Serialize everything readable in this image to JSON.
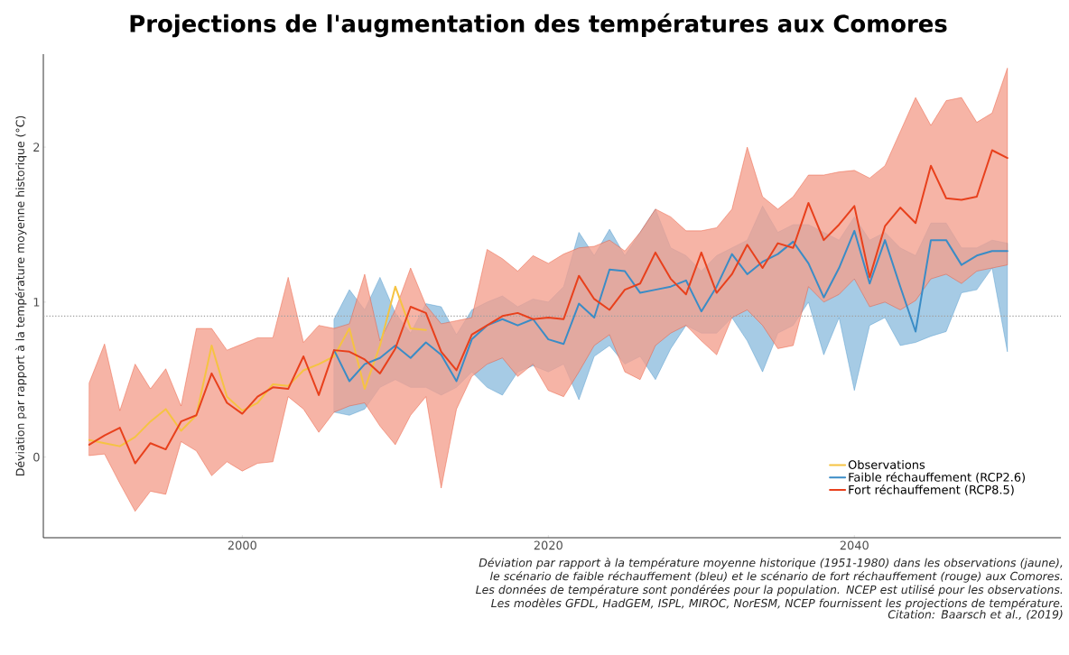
{
  "chart_data": {
    "type": "line",
    "title": "Projections de l'augmentation des températures aux Comores",
    "ylabel": "Déviation par rapport à la température moyenne historique (°C)",
    "x": [
      1990,
      1991,
      1992,
      1993,
      1994,
      1995,
      1996,
      1997,
      1998,
      1999,
      2000,
      2001,
      2002,
      2003,
      2004,
      2005,
      2006,
      2007,
      2008,
      2009,
      2010,
      2011,
      2012,
      2013,
      2014,
      2015,
      2016,
      2017,
      2018,
      2019,
      2020,
      2021,
      2022,
      2023,
      2024,
      2025,
      2026,
      2027,
      2028,
      2029,
      2030,
      2031,
      2032,
      2033,
      2034,
      2035,
      2036,
      2037,
      2038,
      2039,
      2040,
      2041,
      2042,
      2043,
      2044,
      2045,
      2046,
      2047,
      2048,
      2049,
      2050
    ],
    "series": [
      {
        "name": "Observations",
        "color": "#f5c342",
        "values": [
          0.11,
          0.09,
          0.07,
          0.13,
          0.23,
          0.31,
          0.17,
          0.27,
          0.72,
          0.39,
          0.3,
          0.35,
          0.47,
          0.46,
          0.56,
          0.6,
          0.65,
          0.83,
          0.44,
          0.72,
          1.1,
          0.83,
          0.82,
          null,
          null,
          null,
          null,
          null,
          null,
          null,
          null,
          null,
          null,
          null,
          null,
          null,
          null,
          null,
          null,
          null,
          null,
          null,
          null,
          null,
          null,
          null,
          null,
          null,
          null,
          null,
          null,
          null,
          null,
          null,
          null,
          null,
          null,
          null,
          null,
          null,
          null
        ]
      },
      {
        "name": "Faible réchauffement (RCP2.6)",
        "color": "#3a8cc6",
        "values": [
          null,
          null,
          null,
          null,
          null,
          null,
          null,
          null,
          null,
          null,
          null,
          null,
          null,
          null,
          null,
          null,
          0.69,
          0.49,
          0.6,
          0.64,
          0.72,
          0.64,
          0.74,
          0.66,
          0.49,
          0.76,
          0.85,
          0.89,
          0.85,
          0.89,
          0.76,
          0.73,
          0.99,
          0.9,
          1.21,
          1.2,
          1.06,
          1.08,
          1.1,
          1.14,
          0.94,
          1.1,
          1.31,
          1.18,
          1.26,
          1.31,
          1.39,
          1.25,
          1.03,
          1.22,
          1.46,
          1.12,
          1.4,
          1.1,
          0.81,
          1.4,
          1.4,
          1.24,
          1.3,
          1.33,
          1.33
        ],
        "lower": [
          null,
          null,
          null,
          null,
          null,
          null,
          null,
          null,
          null,
          null,
          null,
          null,
          null,
          null,
          null,
          null,
          0.29,
          0.27,
          0.31,
          0.45,
          0.5,
          0.45,
          0.45,
          0.4,
          0.45,
          0.55,
          0.45,
          0.4,
          0.55,
          0.59,
          0.55,
          0.6,
          0.37,
          0.65,
          0.72,
          0.6,
          0.65,
          0.5,
          0.7,
          0.85,
          0.8,
          0.8,
          0.9,
          0.75,
          0.55,
          0.8,
          0.85,
          1.0,
          0.66,
          0.9,
          0.43,
          0.85,
          0.9,
          0.72,
          0.74,
          0.78,
          0.81,
          1.06,
          1.08,
          1.22,
          0.68
        ],
        "upper": [
          null,
          null,
          null,
          null,
          null,
          null,
          null,
          null,
          null,
          null,
          null,
          null,
          null,
          null,
          null,
          null,
          0.89,
          1.08,
          0.95,
          1.16,
          0.93,
          0.8,
          0.99,
          0.97,
          0.79,
          0.95,
          1.0,
          1.04,
          0.97,
          1.02,
          1.0,
          1.1,
          1.45,
          1.3,
          1.47,
          1.3,
          1.45,
          1.6,
          1.35,
          1.3,
          1.2,
          1.3,
          1.35,
          1.4,
          1.62,
          1.45,
          1.5,
          1.5,
          1.45,
          1.4,
          1.55,
          1.4,
          1.45,
          1.35,
          1.3,
          1.51,
          1.51,
          1.35,
          1.35,
          1.4,
          1.38
        ]
      },
      {
        "name": "Fort réchauffement (RCP8.5)",
        "color": "#e8401c",
        "values": [
          0.08,
          0.14,
          0.19,
          -0.04,
          0.09,
          0.05,
          0.23,
          0.27,
          0.54,
          0.35,
          0.28,
          0.39,
          0.45,
          0.44,
          0.65,
          0.4,
          0.69,
          0.68,
          0.63,
          0.54,
          0.7,
          0.97,
          0.93,
          0.68,
          0.56,
          0.79,
          0.85,
          0.91,
          0.93,
          0.89,
          0.9,
          0.89,
          1.17,
          1.02,
          0.95,
          1.08,
          1.12,
          1.32,
          1.15,
          1.05,
          1.32,
          1.06,
          1.18,
          1.37,
          1.22,
          1.38,
          1.35,
          1.64,
          1.4,
          1.5,
          1.62,
          1.16,
          1.49,
          1.61,
          1.51,
          1.88,
          1.67,
          1.66,
          1.68,
          1.98,
          1.93
        ],
        "lower": [
          0.01,
          0.02,
          -0.17,
          -0.35,
          -0.22,
          -0.24,
          0.1,
          0.04,
          -0.12,
          -0.03,
          -0.09,
          -0.04,
          -0.03,
          0.39,
          0.31,
          0.16,
          0.29,
          0.33,
          0.35,
          0.2,
          0.08,
          0.27,
          0.39,
          -0.2,
          0.31,
          0.52,
          0.6,
          0.64,
          0.52,
          0.6,
          0.43,
          0.39,
          0.55,
          0.72,
          0.79,
          0.55,
          0.5,
          0.72,
          0.8,
          0.85,
          0.75,
          0.66,
          0.9,
          0.95,
          0.85,
          0.7,
          0.72,
          1.1,
          1.0,
          1.05,
          1.15,
          0.97,
          1.0,
          0.95,
          1.01,
          1.15,
          1.18,
          1.12,
          1.2,
          1.22,
          1.24
        ],
        "upper": [
          0.48,
          0.73,
          0.3,
          0.6,
          0.44,
          0.57,
          0.33,
          0.83,
          0.83,
          0.69,
          0.73,
          0.77,
          0.77,
          1.16,
          0.74,
          0.85,
          0.83,
          0.86,
          1.18,
          0.75,
          0.95,
          1.22,
          0.98,
          0.86,
          0.88,
          0.9,
          1.34,
          1.28,
          1.2,
          1.3,
          1.25,
          1.31,
          1.35,
          1.36,
          1.4,
          1.33,
          1.45,
          1.6,
          1.55,
          1.46,
          1.46,
          1.48,
          1.6,
          2.0,
          1.68,
          1.6,
          1.68,
          1.82,
          1.82,
          1.84,
          1.85,
          1.8,
          1.88,
          2.1,
          2.32,
          2.14,
          2.3,
          2.32,
          2.16,
          2.22,
          2.51
        ]
      }
    ],
    "xlim": [
      1987,
      2053.5
    ],
    "ylim": [
      -0.52,
      2.6
    ],
    "xticks": [
      2000,
      2020,
      2040
    ],
    "yticks": [
      0,
      1,
      2
    ],
    "ref_lines": [
      {
        "axis": "y",
        "value": 0.91,
        "color": "#a0a0a0",
        "line_style": "dotted"
      }
    ],
    "legend": "bottom right",
    "annotations": [
      "Déviation par rapport à la température moyenne historique (1951-1980) dans les observations (jaune), le scénario de faible réchauffement (bleu) et le scénario de fort réchauffement (rouge) aux Comores. Les données de température sont pondérées pour la population. NCEP est utilisé pour les observations. Les modèles GFDL, HadGEM, ISPL, MIROC, NorESM, NCEP fournissent les projections de température.",
      "Citation: Baarsch et al., (2019)"
    ]
  }
}
